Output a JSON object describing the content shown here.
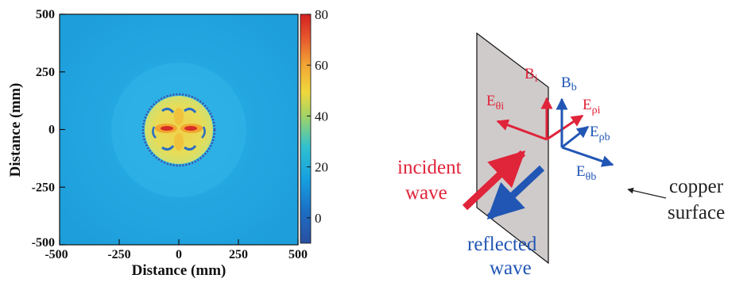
{
  "chart_data": {
    "type": "heatmap",
    "x_ticks": [
      "-500",
      "-250",
      "0",
      "250",
      "500"
    ],
    "y_ticks": [
      "500",
      "250",
      "0",
      "-250",
      "-500"
    ],
    "xlabel": "Distance (mm)",
    "ylabel": "Distance (mm)",
    "xlim": [
      -500,
      500
    ],
    "ylim": [
      -500,
      500
    ],
    "colorbar_ticks": [
      "80",
      "60",
      "40",
      "20",
      "0"
    ],
    "colorbar_range": [
      -10,
      80
    ],
    "background_level": 22,
    "disc_radius_mm": 140,
    "disc_level": 45,
    "hotspot_level": 75,
    "colors": {
      "low": "#2c5aa8",
      "background": "#1ea7e0",
      "mid": "#e8d84a",
      "high": "#d62d27"
    }
  },
  "diagram": {
    "labels": {
      "b_i": {
        "main": "B",
        "sub": "i"
      },
      "e_theta_i": {
        "main": "E",
        "sub": "θi"
      },
      "b_b": {
        "main": "B",
        "sub": "b"
      },
      "e_rho_i": {
        "main": "E",
        "sub": "ρi"
      },
      "e_rho_b": {
        "main": "E",
        "sub": "ρb"
      },
      "e_theta_b": {
        "main": "E",
        "sub": "θb"
      },
      "incident_line1": "incident",
      "incident_line2": "wave",
      "reflected_line1": "reflected",
      "reflected_line2": "wave",
      "copper_line1": "copper",
      "copper_line2": "surface"
    },
    "colors": {
      "incident": "#e0243a",
      "reflected": "#2156b5",
      "surface": "#cfcbca"
    }
  }
}
